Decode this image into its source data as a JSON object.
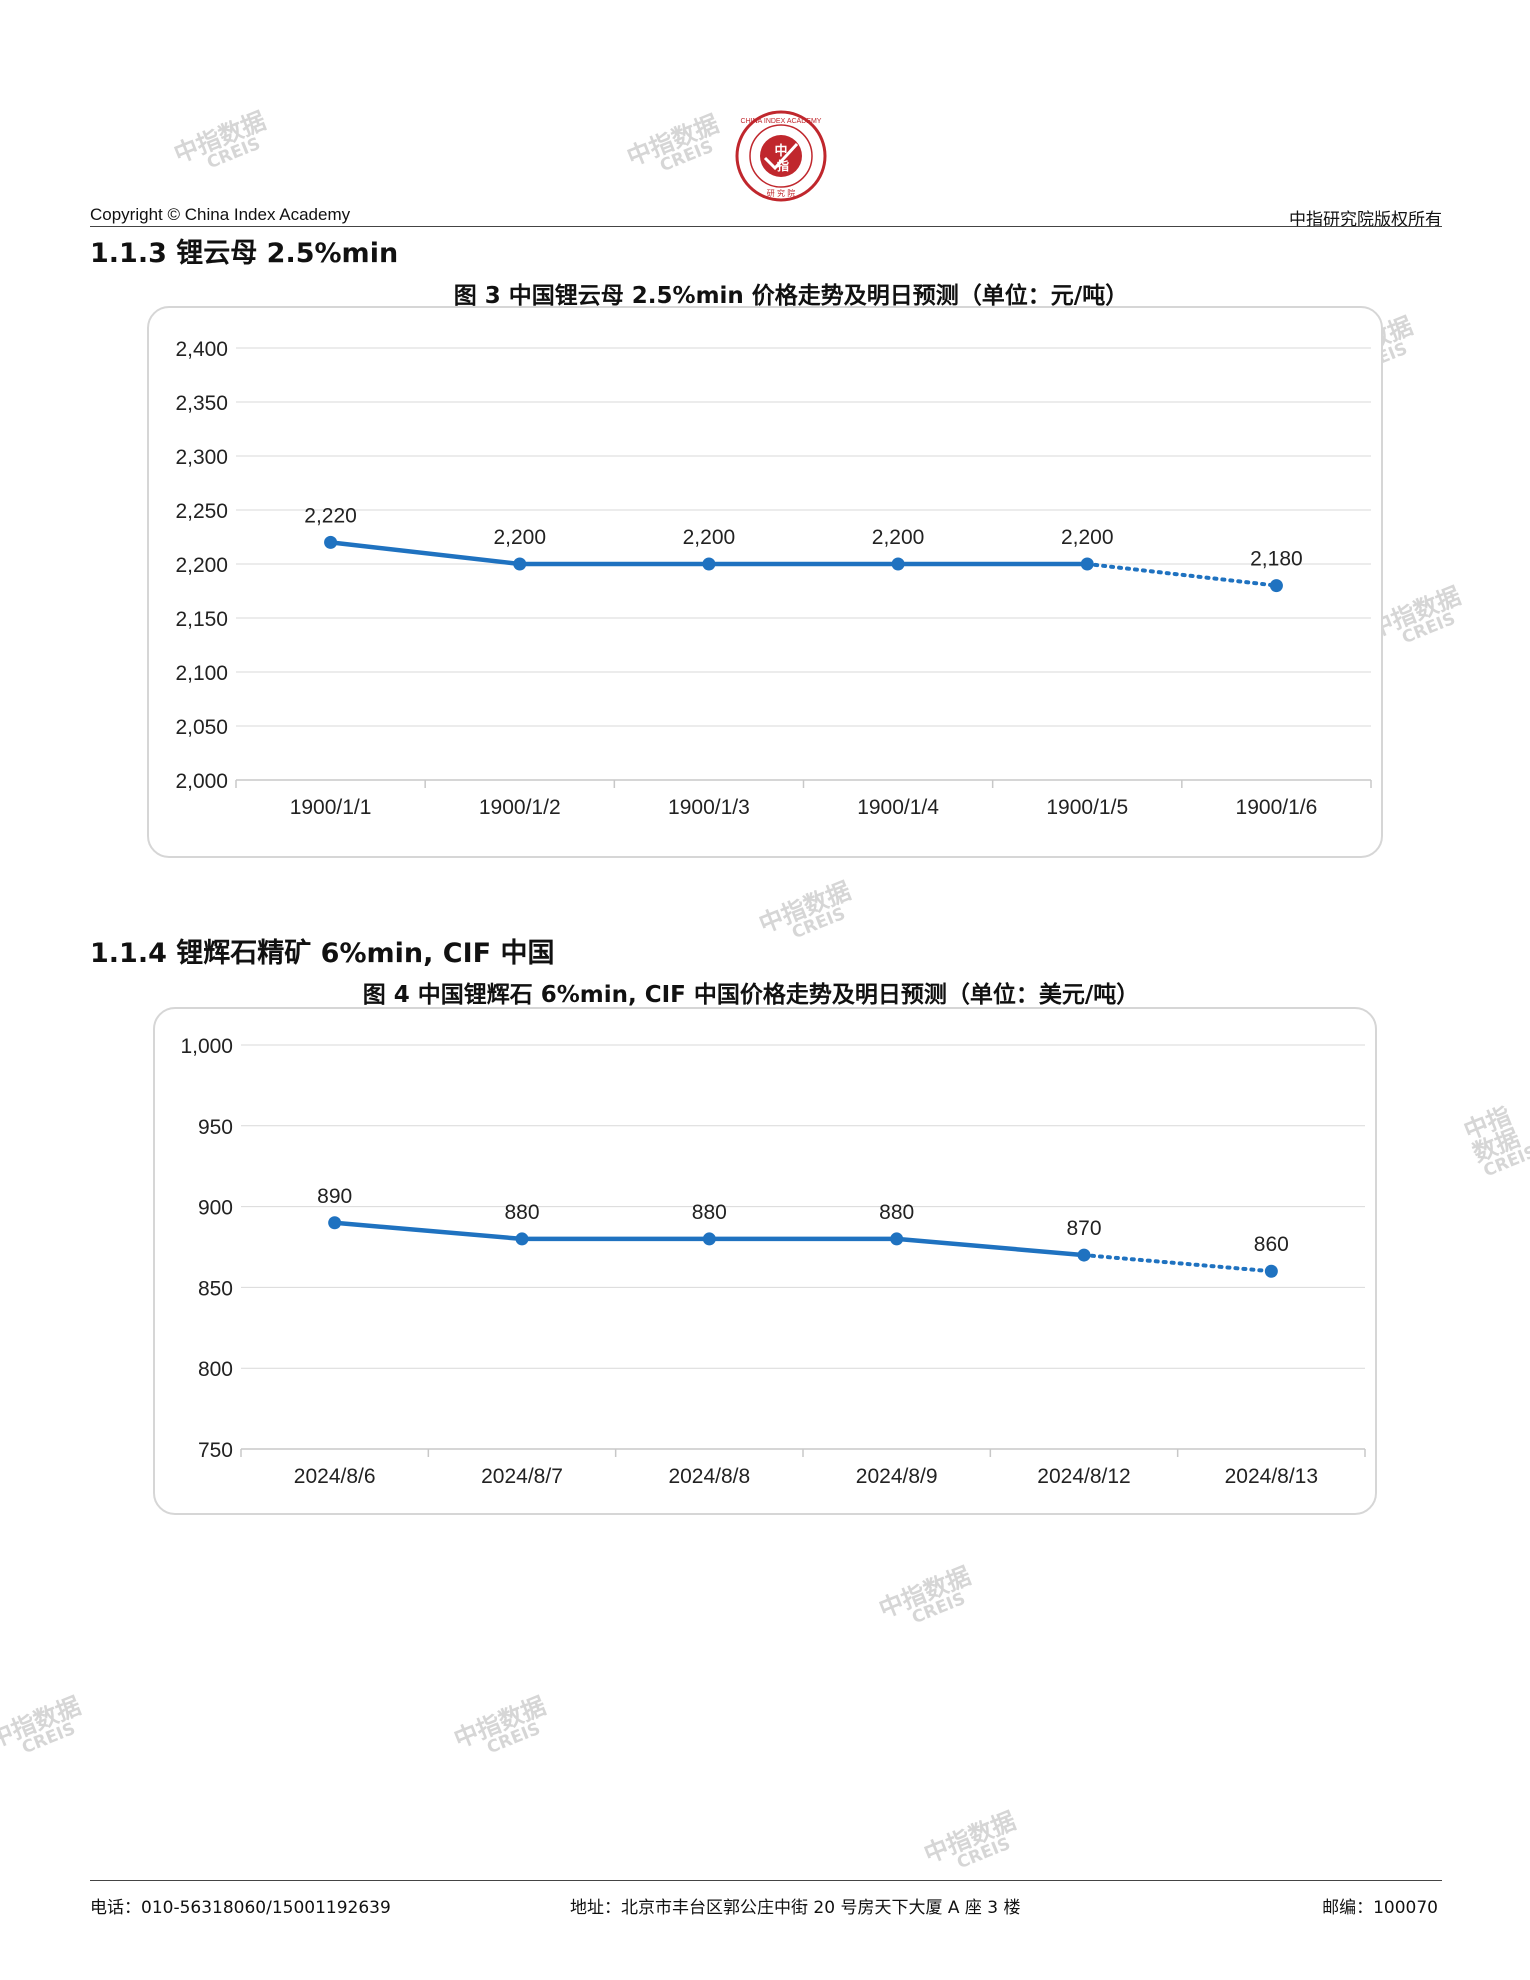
{
  "header": {
    "logo_text": "CHINA INDEX ACADEMY 中指 研究院",
    "copyright": "Copyright © China Index Academy",
    "rights": "中指研究院版权所有"
  },
  "watermark": {
    "line1": "中指数据",
    "line2": "CREIS"
  },
  "sections": [
    {
      "heading": "1.1.3 锂云母 2.5%min",
      "figure_title": "图 3 中国锂云母 2.5%min 价格走势及明日预测（单位：元/吨）"
    },
    {
      "heading": "1.1.4 锂辉石精矿 6%min, CIF 中国",
      "figure_title": "图 4 中国锂辉石 6%min, CIF 中国价格走势及明日预测（单位：美元/吨）"
    }
  ],
  "chart_data": [
    {
      "type": "line",
      "title": "图 3 中国锂云母 2.5%min 价格走势及明日预测（单位：元/吨）",
      "categories": [
        "1900/1/1",
        "1900/1/2",
        "1900/1/3",
        "1900/1/4",
        "1900/1/5",
        "1900/1/6"
      ],
      "values": [
        2220,
        2200,
        2200,
        2200,
        2200,
        2180
      ],
      "value_labels": [
        "2,220",
        "2,200",
        "2,200",
        "2,200",
        "2,200",
        "2,180"
      ],
      "forecast_from_index": 4,
      "ylim": [
        2000,
        2400
      ],
      "yticks": [
        2000,
        2050,
        2100,
        2150,
        2200,
        2250,
        2300,
        2350,
        2400
      ],
      "ytick_labels": [
        "2,000",
        "2,050",
        "2,100",
        "2,150",
        "2,200",
        "2,250",
        "2,300",
        "2,350",
        "2,400"
      ],
      "color": "#1f72c0",
      "grid": true
    },
    {
      "type": "line",
      "title": "图 4 中国锂辉石 6%min, CIF 中国价格走势及明日预测（单位：美元/吨）",
      "categories": [
        "2024/8/6",
        "2024/8/7",
        "2024/8/8",
        "2024/8/9",
        "2024/8/12",
        "2024/8/13"
      ],
      "values": [
        890,
        880,
        880,
        880,
        870,
        860
      ],
      "value_labels": [
        "890",
        "880",
        "880",
        "880",
        "870",
        "860"
      ],
      "forecast_from_index": 4,
      "ylim": [
        750,
        1000
      ],
      "yticks": [
        750,
        800,
        850,
        900,
        950,
        1000
      ],
      "ytick_labels": [
        "750",
        "800",
        "850",
        "900",
        "950",
        "1,000"
      ],
      "color": "#1f72c0",
      "grid": true
    }
  ],
  "footer": {
    "phone": "电话：010-56318060/15001192639",
    "address": "地址：北京市丰台区郭公庄中街 20 号房天下大厦 A 座 3 楼",
    "postcode": "邮编：100070"
  }
}
